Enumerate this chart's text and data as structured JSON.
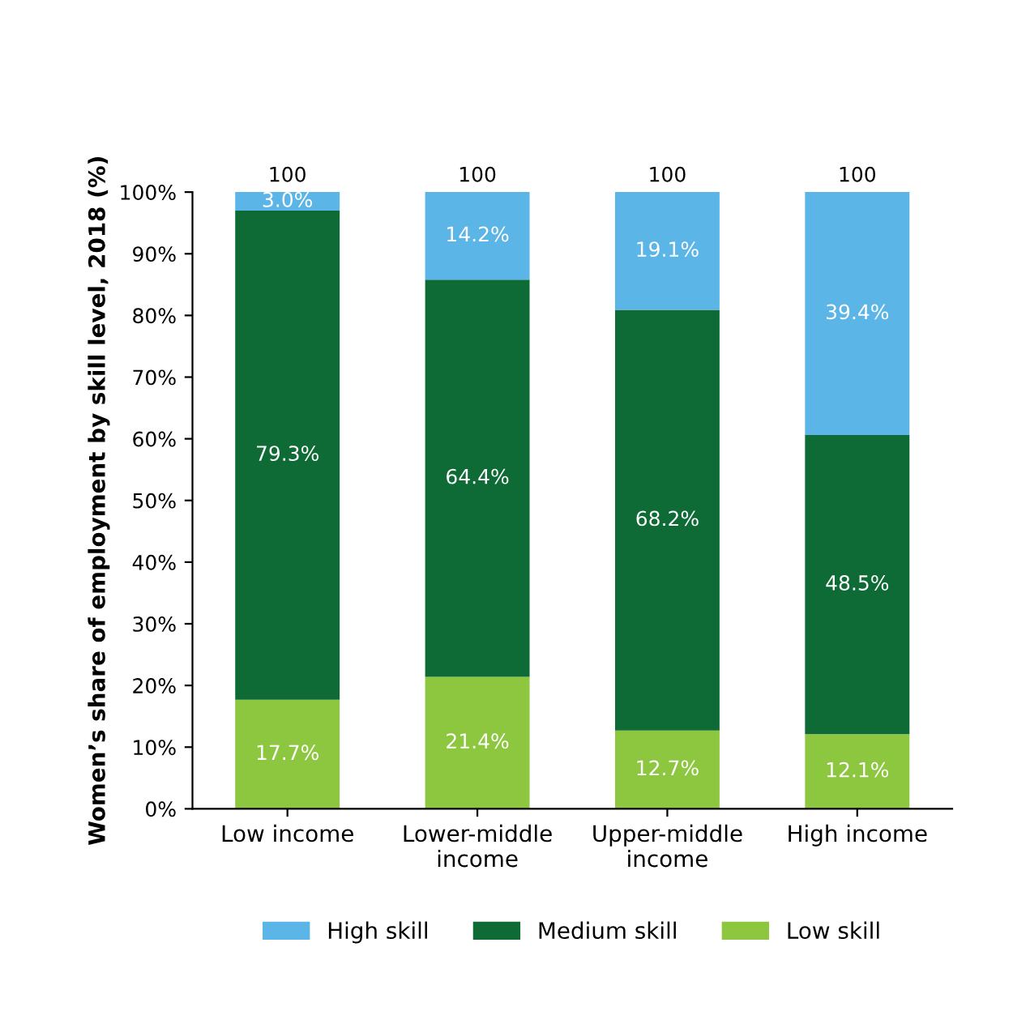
{
  "chart_data": {
    "type": "bar",
    "stacked": true,
    "ylabel": "Women’s share of employment by skill level, 2018 (%)",
    "categories": [
      "Low income",
      "Lower-middle\nincome",
      "Upper-middle\nincome",
      "High income"
    ],
    "series": [
      {
        "name": "Low skill",
        "color": "#8dc63f",
        "values": [
          17.7,
          21.4,
          12.7,
          12.1
        ],
        "value_labels": [
          "17.7%",
          "21.4%",
          "12.7%",
          "12.1%"
        ]
      },
      {
        "name": "Medium skill",
        "color": "#0e6b35",
        "values": [
          79.3,
          64.4,
          68.2,
          48.5
        ],
        "value_labels": [
          "79.3%",
          "64.4%",
          "68.2%",
          "48.5%"
        ]
      },
      {
        "name": "High skill",
        "color": "#5bb5e6",
        "values": [
          3.0,
          14.2,
          19.1,
          39.4
        ],
        "value_labels": [
          "3.0%",
          "14.2%",
          "19.1%",
          "39.4%"
        ]
      }
    ],
    "totals": [
      "100",
      "100",
      "100",
      "100"
    ],
    "ylim": [
      0,
      100
    ],
    "yticks": [
      {
        "value": 0,
        "label": "0%"
      },
      {
        "value": 10,
        "label": "10%"
      },
      {
        "value": 20,
        "label": "20%"
      },
      {
        "value": 30,
        "label": "30%"
      },
      {
        "value": 40,
        "label": "40%"
      },
      {
        "value": 50,
        "label": "50%"
      },
      {
        "value": 60,
        "label": "60%"
      },
      {
        "value": 70,
        "label": "70%"
      },
      {
        "value": 80,
        "label": "80%"
      },
      {
        "value": 90,
        "label": "90%"
      },
      {
        "value": 100,
        "label": "100%"
      }
    ],
    "grid": false,
    "legend": "bottom"
  }
}
